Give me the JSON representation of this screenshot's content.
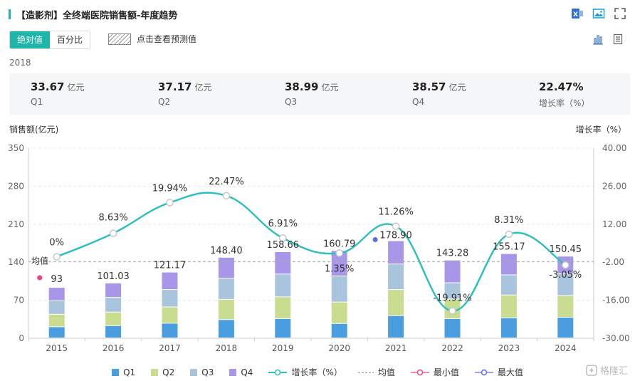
{
  "title": "【造影剂】全终端医院销售额-年度趋势",
  "toggle": {
    "absolute": "绝对值",
    "percent": "百分比"
  },
  "forecast_label": "点击查看预测值",
  "selected_year": "2018",
  "summary": [
    {
      "value": "33.67",
      "unit": "亿元",
      "label": "Q1"
    },
    {
      "value": "37.17",
      "unit": "亿元",
      "label": "Q2"
    },
    {
      "value": "38.99",
      "unit": "亿元",
      "label": "Q3"
    },
    {
      "value": "38.57",
      "unit": "亿元",
      "label": "Q4"
    },
    {
      "value": "22.47%",
      "unit": "",
      "label": "增长率（%）"
    }
  ],
  "legend": {
    "q1": "Q1",
    "q2": "Q2",
    "q3": "Q3",
    "q4": "Q4",
    "growth": "增长率（%）",
    "mean": "均值",
    "min": "最小值",
    "max": "最大值"
  },
  "watermark": "格隆汇",
  "colors": {
    "q1": "#4a9ee0",
    "q2": "#c9dc8f",
    "q3": "#a9c4dd",
    "q4": "#a896e8",
    "line": "#2fc0bd",
    "accent": "#1fb5a8",
    "min": "#e9457f",
    "max": "#5b6ee0"
  },
  "chart_data": {
    "type": "bar",
    "stacked": true,
    "ylabel": "销售额(亿元)",
    "y2label": "增长率（%）",
    "ylim": [
      0,
      350
    ],
    "yticks": [
      0,
      70,
      140,
      210,
      280,
      350
    ],
    "y2lim": [
      -30,
      40
    ],
    "y2ticks": [
      "-30.00",
      "-16.00",
      "-2.00",
      "12.00",
      "26.00",
      "40.00"
    ],
    "categories": [
      "2015",
      "2016",
      "2017",
      "2018",
      "2019",
      "2020",
      "2021",
      "2022",
      "2023",
      "2024"
    ],
    "series": [
      {
        "name": "Q1",
        "values": [
          20.5,
          22.5,
          27.0,
          33.67,
          35.5,
          26.5,
          41.0,
          35.5,
          37.0,
          38.0
        ]
      },
      {
        "name": "Q2",
        "values": [
          23.0,
          25.0,
          30.0,
          37.17,
          40.0,
          39.5,
          48.0,
          36.0,
          42.0,
          40.0
        ]
      },
      {
        "name": "Q3",
        "values": [
          25.0,
          27.0,
          32.0,
          38.99,
          42.0,
          48.0,
          47.0,
          30.0,
          37.0,
          40.0
        ]
      },
      {
        "name": "Q4",
        "values": [
          24.5,
          26.53,
          32.17,
          38.57,
          41.16,
          46.79,
          42.9,
          41.78,
          39.17,
          32.45
        ]
      }
    ],
    "totals": [
      "93",
      "101.03",
      "121.17",
      "148.40",
      "158.66",
      "160.79",
      "178.90",
      "143.28",
      "155.17",
      "150.45"
    ],
    "growth": [
      0,
      8.63,
      19.94,
      22.47,
      6.91,
      1.35,
      11.26,
      -19.91,
      8.31,
      -3.05
    ],
    "growth_labels": [
      "0%",
      "8.63%",
      "19.94%",
      "22.47%",
      "6.91%",
      "1.35%",
      "11.26%",
      "-19.91%",
      "8.31%",
      "-3.05%"
    ],
    "mean": 141.18,
    "mean_label": "均值",
    "min_index": 0,
    "max_index": 6,
    "legend_position": "bottom"
  }
}
